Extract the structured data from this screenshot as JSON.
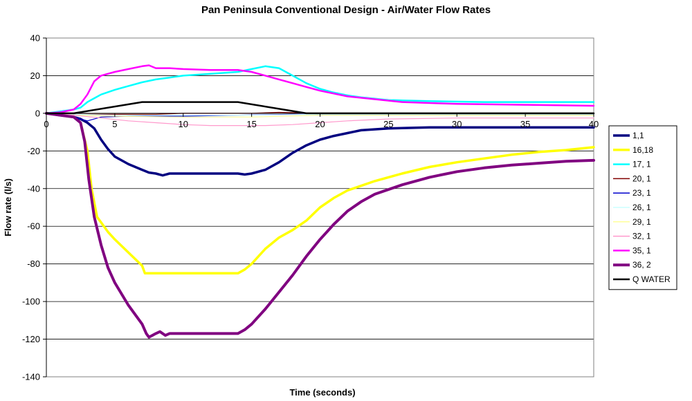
{
  "chart_data": {
    "type": "line",
    "title": "Pan Peninsula Conventional Design - Air/Water Flow Rates",
    "xlabel": "Time (seconds)",
    "ylabel": "Flow rate (l/s)",
    "xlim": [
      0,
      40
    ],
    "ylim": [
      -140,
      40
    ],
    "xticks": [
      0,
      5,
      10,
      15,
      20,
      25,
      30,
      35,
      40
    ],
    "yticks": [
      -140,
      -120,
      -100,
      -80,
      -60,
      -40,
      -20,
      0,
      20,
      40
    ],
    "grid": "horizontal",
    "legend_position": "right",
    "series": [
      {
        "name": "1,1",
        "color": "#000080",
        "width": 3.5,
        "points": [
          [
            0,
            0
          ],
          [
            1,
            -1
          ],
          [
            2,
            -2
          ],
          [
            2.5,
            -3
          ],
          [
            3,
            -5
          ],
          [
            3.5,
            -8
          ],
          [
            4,
            -14
          ],
          [
            4.5,
            -19
          ],
          [
            5,
            -23
          ],
          [
            6,
            -27
          ],
          [
            7,
            -30
          ],
          [
            7.5,
            -31.5
          ],
          [
            8,
            -32
          ],
          [
            8.5,
            -33
          ],
          [
            9,
            -32
          ],
          [
            10,
            -32
          ],
          [
            12,
            -32
          ],
          [
            14,
            -32
          ],
          [
            14.5,
            -32.5
          ],
          [
            15,
            -32
          ],
          [
            16,
            -30
          ],
          [
            17,
            -26
          ],
          [
            18,
            -21
          ],
          [
            19,
            -17
          ],
          [
            20,
            -14
          ],
          [
            21,
            -12
          ],
          [
            22,
            -10.5
          ],
          [
            23,
            -9
          ],
          [
            25,
            -8
          ],
          [
            28,
            -7.5
          ],
          [
            32,
            -7.5
          ],
          [
            36,
            -7.5
          ],
          [
            40,
            -7.5
          ]
        ]
      },
      {
        "name": "16,18",
        "color": "#FFFF00",
        "width": 3.5,
        "points": [
          [
            0,
            0
          ],
          [
            2,
            -2
          ],
          [
            2.5,
            -5
          ],
          [
            3,
            -20
          ],
          [
            3.3,
            -40
          ],
          [
            3.7,
            -55
          ],
          [
            4.5,
            -63
          ],
          [
            5,
            -67
          ],
          [
            6,
            -74
          ],
          [
            7,
            -81
          ],
          [
            7.2,
            -85
          ],
          [
            10,
            -85
          ],
          [
            12,
            -85
          ],
          [
            14,
            -85
          ],
          [
            14.5,
            -83
          ],
          [
            15,
            -80
          ],
          [
            16,
            -72
          ],
          [
            17,
            -66
          ],
          [
            18,
            -62
          ],
          [
            19,
            -57
          ],
          [
            20,
            -50
          ],
          [
            21,
            -45
          ],
          [
            22,
            -41
          ],
          [
            24,
            -36
          ],
          [
            26,
            -32
          ],
          [
            28,
            -28.5
          ],
          [
            30,
            -26
          ],
          [
            32,
            -24
          ],
          [
            34,
            -22
          ],
          [
            36,
            -20.5
          ],
          [
            38,
            -19.5
          ],
          [
            40,
            -18
          ]
        ]
      },
      {
        "name": "17, 1",
        "color": "#00FFFF",
        "width": 2.5,
        "points": [
          [
            0,
            0
          ],
          [
            1,
            1
          ],
          [
            2,
            2
          ],
          [
            2.5,
            3
          ],
          [
            3,
            6
          ],
          [
            3.5,
            8
          ],
          [
            4,
            10
          ],
          [
            5,
            12.5
          ],
          [
            6,
            14.5
          ],
          [
            7,
            16.5
          ],
          [
            8,
            18
          ],
          [
            9,
            19
          ],
          [
            10,
            20
          ],
          [
            12,
            21
          ],
          [
            14,
            22
          ],
          [
            15,
            23.5
          ],
          [
            16,
            25
          ],
          [
            17,
            24
          ],
          [
            18,
            20
          ],
          [
            19,
            16
          ],
          [
            20,
            13
          ],
          [
            21,
            11
          ],
          [
            22,
            9.5
          ],
          [
            23,
            8.5
          ],
          [
            25,
            7
          ],
          [
            28,
            6.5
          ],
          [
            32,
            6
          ],
          [
            36,
            6
          ],
          [
            40,
            6
          ]
        ]
      },
      {
        "name": "20, 1",
        "color": "#800000",
        "width": 1.2,
        "points": [
          [
            0,
            0
          ],
          [
            2,
            -0.5
          ],
          [
            5,
            -0.5
          ],
          [
            8,
            -0.5
          ],
          [
            10,
            0
          ],
          [
            15,
            0
          ],
          [
            17,
            0.5
          ],
          [
            20,
            0
          ],
          [
            40,
            0
          ]
        ]
      },
      {
        "name": "23, 1",
        "color": "#0000CC",
        "width": 1.2,
        "points": [
          [
            0,
            0
          ],
          [
            1,
            -1
          ],
          [
            2,
            -2
          ],
          [
            3,
            -4
          ],
          [
            4,
            -2
          ],
          [
            6,
            -1.5
          ],
          [
            10,
            -1.5
          ],
          [
            14,
            -1
          ],
          [
            18,
            -0.5
          ],
          [
            22,
            -0.5
          ],
          [
            30,
            -0.5
          ],
          [
            40,
            -0.5
          ]
        ]
      },
      {
        "name": "26, 1",
        "color": "#CCFFFF",
        "width": 1.2,
        "points": [
          [
            0,
            0
          ],
          [
            2,
            -0.5
          ],
          [
            5,
            -1
          ],
          [
            10,
            -1
          ],
          [
            15,
            -1
          ],
          [
            20,
            -0.5
          ],
          [
            30,
            -0.5
          ],
          [
            40,
            -0.5
          ]
        ]
      },
      {
        "name": "29, 1",
        "color": "#FFFF99",
        "width": 1.2,
        "points": [
          [
            0,
            0
          ],
          [
            2,
            -1
          ],
          [
            5,
            -1.5
          ],
          [
            10,
            -2
          ],
          [
            15,
            -2
          ],
          [
            20,
            -1
          ],
          [
            30,
            -1
          ],
          [
            40,
            -1
          ]
        ]
      },
      {
        "name": "32, 1",
        "color": "#FF99CC",
        "width": 1.2,
        "points": [
          [
            0,
            0
          ],
          [
            2,
            -1
          ],
          [
            4,
            -2.5
          ],
          [
            6,
            -4
          ],
          [
            8,
            -5
          ],
          [
            10,
            -6
          ],
          [
            12,
            -6.5
          ],
          [
            14,
            -6.5
          ],
          [
            16,
            -6.5
          ],
          [
            18,
            -6
          ],
          [
            20,
            -5
          ],
          [
            22,
            -4
          ],
          [
            25,
            -3
          ],
          [
            30,
            -2.5
          ],
          [
            35,
            -2.5
          ],
          [
            40,
            -2.5
          ]
        ]
      },
      {
        "name": "35, 1",
        "color": "#FF00FF",
        "width": 2.5,
        "points": [
          [
            0,
            0
          ],
          [
            1,
            0.5
          ],
          [
            2,
            2
          ],
          [
            2.5,
            5
          ],
          [
            3,
            10
          ],
          [
            3.5,
            17
          ],
          [
            4,
            20
          ],
          [
            5,
            22
          ],
          [
            6,
            23.5
          ],
          [
            7,
            25
          ],
          [
            7.5,
            25.5
          ],
          [
            8,
            24
          ],
          [
            9,
            24
          ],
          [
            10,
            23.5
          ],
          [
            12,
            23
          ],
          [
            14,
            23
          ],
          [
            15,
            22
          ],
          [
            16,
            20
          ],
          [
            17,
            18
          ],
          [
            18,
            16
          ],
          [
            19,
            14
          ],
          [
            20,
            12
          ],
          [
            22,
            9
          ],
          [
            24,
            7.5
          ],
          [
            26,
            6
          ],
          [
            30,
            5
          ],
          [
            35,
            4.5
          ],
          [
            40,
            4
          ]
        ]
      },
      {
        "name": "36, 2",
        "color": "#800080",
        "width": 4,
        "points": [
          [
            0,
            0
          ],
          [
            1,
            -1
          ],
          [
            2,
            -2
          ],
          [
            2.5,
            -5
          ],
          [
            2.8,
            -15
          ],
          [
            3.1,
            -35
          ],
          [
            3.5,
            -55
          ],
          [
            4,
            -70
          ],
          [
            4.5,
            -82
          ],
          [
            5,
            -90
          ],
          [
            6,
            -102
          ],
          [
            7,
            -112
          ],
          [
            7.3,
            -117
          ],
          [
            7.5,
            -119
          ],
          [
            8,
            -117
          ],
          [
            8.3,
            -116
          ],
          [
            8.7,
            -118
          ],
          [
            9,
            -117
          ],
          [
            10,
            -117
          ],
          [
            12,
            -117
          ],
          [
            14,
            -117
          ],
          [
            14.5,
            -115
          ],
          [
            15,
            -112
          ],
          [
            16,
            -104
          ],
          [
            17,
            -95
          ],
          [
            18,
            -86
          ],
          [
            19,
            -76
          ],
          [
            20,
            -67
          ],
          [
            21,
            -59
          ],
          [
            22,
            -52
          ],
          [
            23,
            -47
          ],
          [
            24,
            -43
          ],
          [
            26,
            -38
          ],
          [
            28,
            -34
          ],
          [
            30,
            -31
          ],
          [
            32,
            -29
          ],
          [
            34,
            -27.5
          ],
          [
            36,
            -26.5
          ],
          [
            38,
            -25.5
          ],
          [
            40,
            -25
          ]
        ]
      },
      {
        "name": "Q WATER",
        "color": "#000000",
        "width": 2.5,
        "points": [
          [
            0,
            0
          ],
          [
            2,
            0
          ],
          [
            7,
            6
          ],
          [
            14,
            6
          ],
          [
            19,
            0
          ],
          [
            40,
            0
          ]
        ]
      }
    ]
  }
}
